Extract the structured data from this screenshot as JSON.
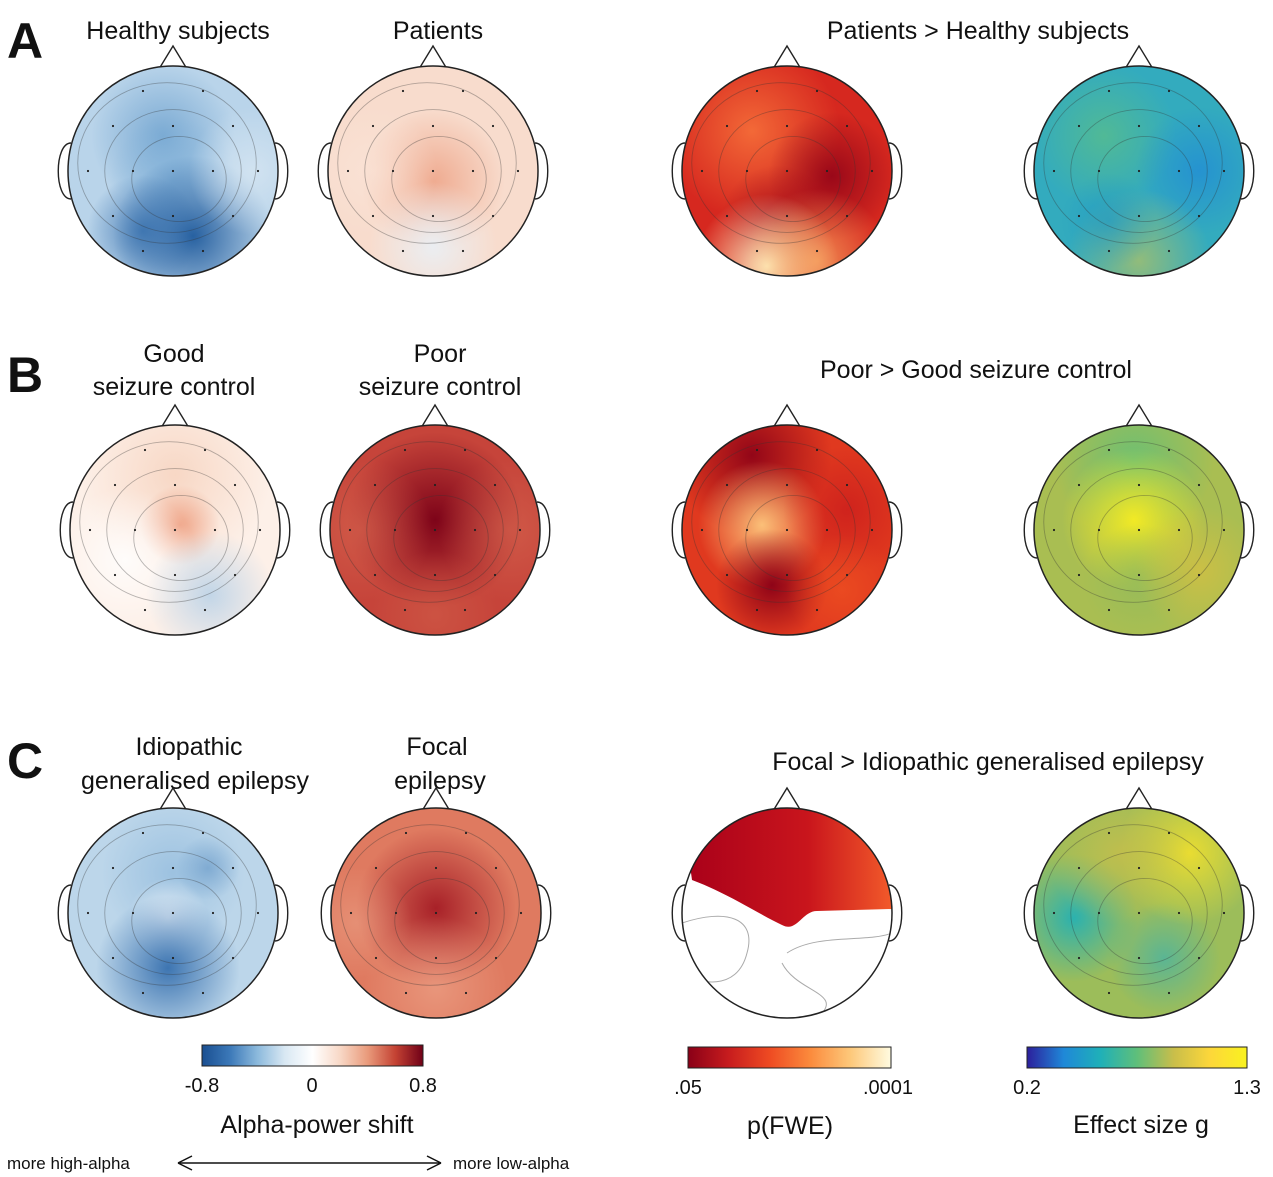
{
  "panels": [
    {
      "letter": "A",
      "titles": {
        "group1": [
          "Healthy subjects"
        ],
        "group2": [
          "Patients"
        ],
        "contrast": [
          "Patients > Healthy subjects"
        ]
      }
    },
    {
      "letter": "B",
      "titles": {
        "group1": [
          "Good",
          "seizure control"
        ],
        "group2": [
          "Poor",
          "seizure control"
        ],
        "contrast": [
          "Poor > Good seizure control"
        ]
      }
    },
    {
      "letter": "C",
      "titles": {
        "group1": [
          "Idiopathic",
          "generalised epilepsy"
        ],
        "group2": [
          "Focal",
          "epilepsy"
        ],
        "contrast": [
          "Focal > Idiopathic generalised epilepsy"
        ]
      }
    }
  ],
  "colorbars": {
    "alpha": {
      "title": "Alpha-power shift",
      "ticks": [
        "-0.8",
        "0",
        "0.8"
      ],
      "range": [
        -0.8,
        0.8
      ],
      "colormap": "blue-white-red",
      "arrow_left": "more high-alpha",
      "arrow_right": "more low-alpha"
    },
    "pfwe": {
      "title": "p(FWE)",
      "ticks": [
        ".05",
        ".0001"
      ],
      "colormap": "dark red-orange-pale yellow"
    },
    "effect": {
      "title": "Effect size g",
      "ticks": [
        "0.2",
        "1.3"
      ],
      "range": [
        0.2,
        1.3
      ],
      "colormap": "blue-teal-green-yellow"
    }
  },
  "colors": {
    "rdbu": [
      "#1a4f91",
      "#3b78b8",
      "#8bb9dc",
      "#d9e8f3",
      "#ffffff",
      "#f8d8c6",
      "#e99a7b",
      "#c44233",
      "#6f0017"
    ],
    "pfwe": [
      "#8a0017",
      "#c71c1e",
      "#ee4a22",
      "#fb8a3c",
      "#fdc87a",
      "#fffbe0"
    ],
    "effect": [
      "#2c1f9c",
      "#1f88d8",
      "#1fb0b8",
      "#5fbf7a",
      "#c9be4a",
      "#fdd73a",
      "#f9f21f"
    ]
  }
}
